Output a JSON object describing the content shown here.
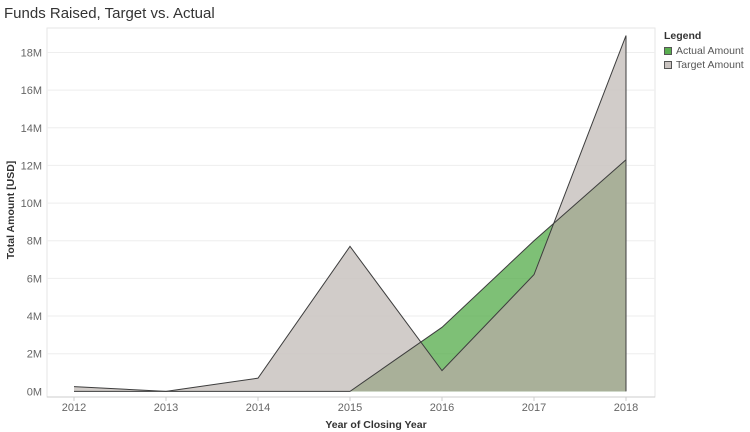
{
  "chart_data": {
    "type": "area",
    "title": "Funds Raised, Target vs. Actual",
    "xlabel": "Year of Closing Year",
    "ylabel": "Total Amount [USD]",
    "categories": [
      "2012",
      "2013",
      "2014",
      "2015",
      "2016",
      "2017",
      "2018"
    ],
    "y_tick_labels": [
      "0M",
      "2M",
      "4M",
      "6M",
      "8M",
      "10M",
      "12M",
      "14M",
      "16M",
      "18M"
    ],
    "y_tick_values": [
      0,
      2000000,
      4000000,
      6000000,
      8000000,
      10000000,
      12000000,
      14000000,
      16000000,
      18000000
    ],
    "ylim": [
      -300000,
      19300000
    ],
    "grid": true,
    "legend_title": "Legend",
    "legend_position": "right",
    "series": [
      {
        "name": "Actual Amount",
        "color": "#5aae50",
        "values": [
          0,
          0,
          0,
          0,
          3400000,
          8000000,
          12300000
        ]
      },
      {
        "name": "Target Amount",
        "color": "#c9c3c0",
        "values": [
          250000,
          0,
          700000,
          7700000,
          1100000,
          6200000,
          18900000
        ]
      }
    ]
  }
}
